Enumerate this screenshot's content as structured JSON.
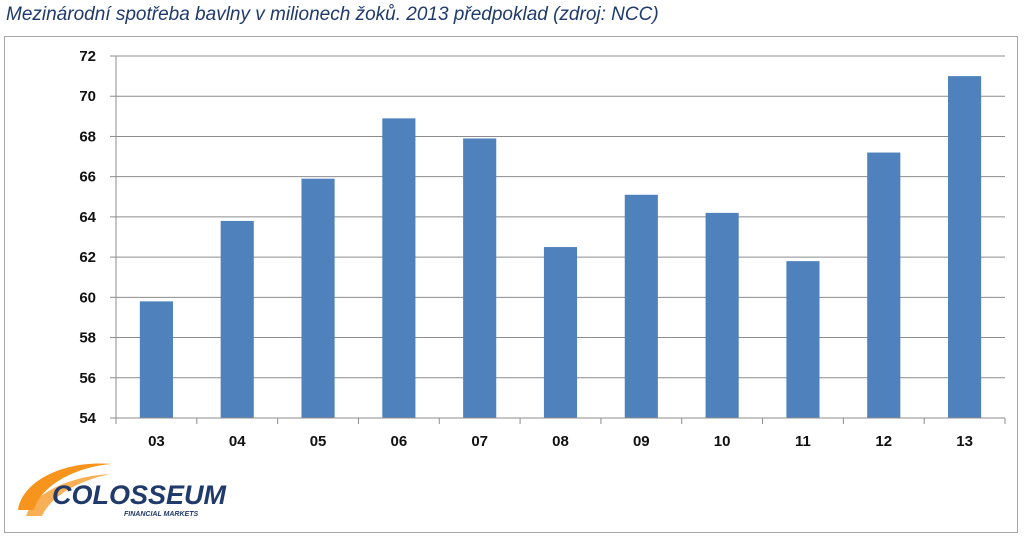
{
  "title": "Mezinárodní spotřeba bavlny v milionech žoků. 2013 předpoklad (zdroj: NCC)",
  "chart_data": {
    "type": "bar",
    "title": "Mezinárodní spotřeba bavlny v milionech žoků. 2013 předpoklad (zdroj: NCC)",
    "categories": [
      "03",
      "04",
      "05",
      "06",
      "07",
      "08",
      "09",
      "10",
      "11",
      "12",
      "13"
    ],
    "values": [
      59.8,
      63.8,
      65.9,
      68.9,
      67.9,
      62.5,
      65.1,
      64.2,
      61.8,
      67.2,
      71.0
    ],
    "xlabel": "",
    "ylabel": "",
    "ylim": [
      54,
      72
    ],
    "yticks": [
      54,
      56,
      58,
      60,
      62,
      64,
      66,
      68,
      70,
      72
    ],
    "grid": true,
    "legend": "none",
    "bar_color": "#4f81bd"
  },
  "logo": {
    "name": "COLOSSEUM",
    "tagline": "FINANCIAL MARKETS",
    "accent_color": "#f7941d",
    "text_color": "#1f3a6b"
  }
}
